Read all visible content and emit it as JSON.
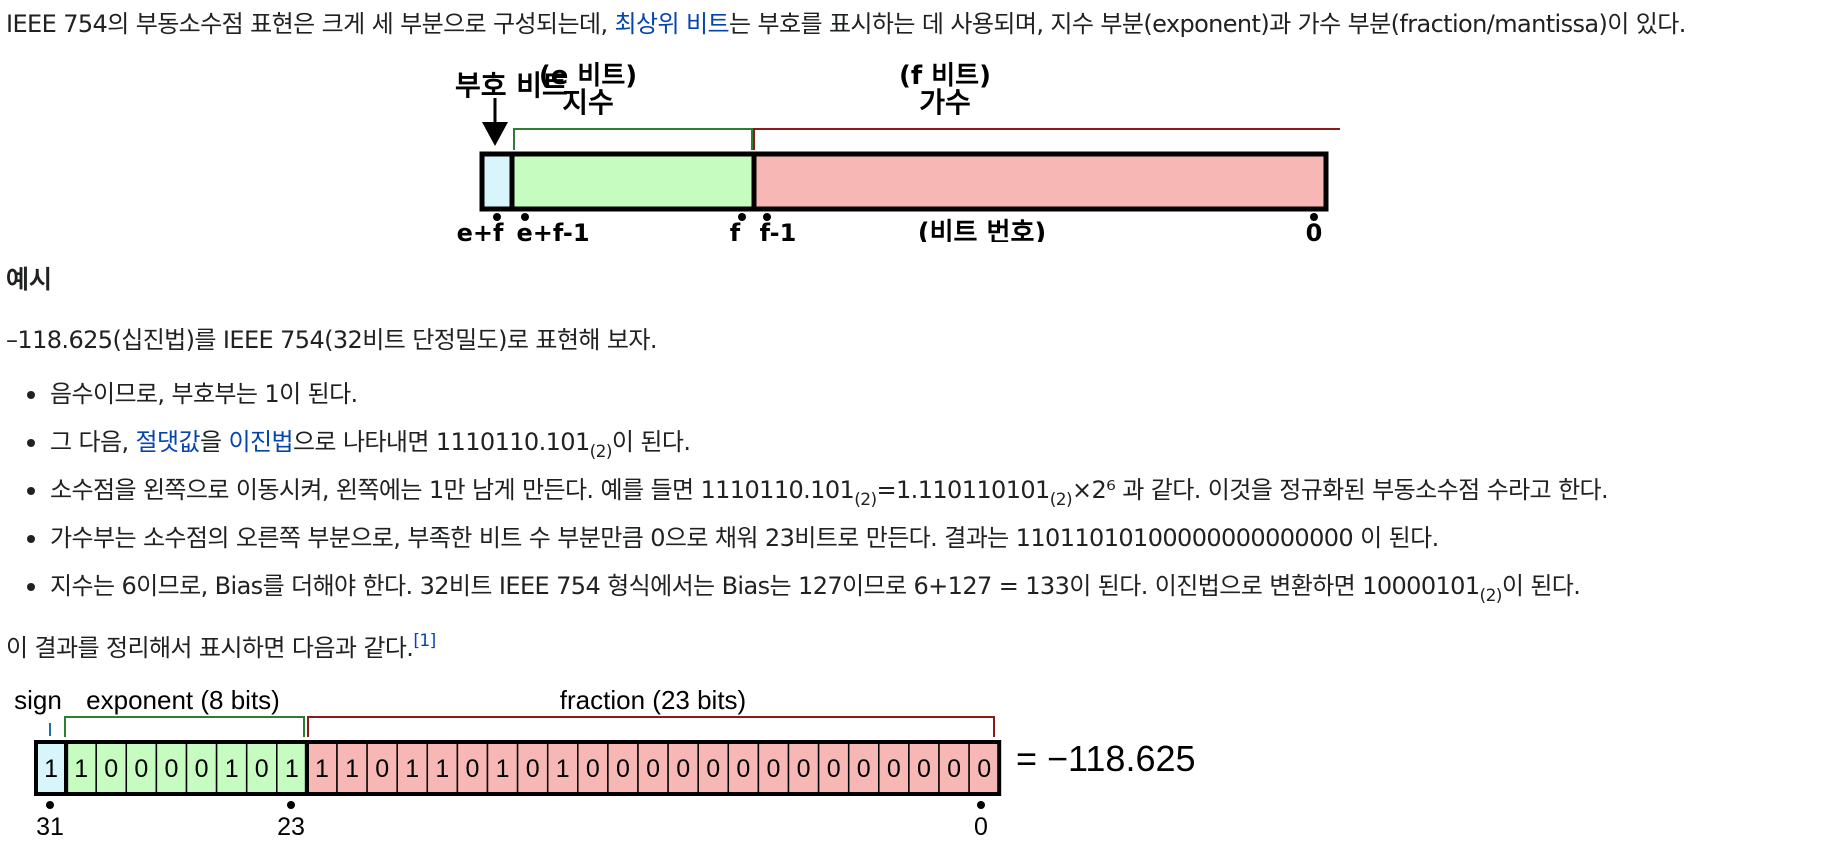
{
  "intro": {
    "part1": "IEEE 754의 부동소수점 표현은 크게 세 부분으로 구성되는데, ",
    "link": "최상위 비트",
    "part2": "는 부호를 표시하는 데 사용되며, 지수 부분(exponent)과 가수 부분(fraction/mantissa)이 있다."
  },
  "diagram1": {
    "sign_label": "부호 비트",
    "exp_label_top": "(e 비트)",
    "exp_label": "지수",
    "frac_label_top": "(f 비트)",
    "frac_label": "가수",
    "bit_e_f": "e+f",
    "bit_e_f_1": "e+f-1",
    "bit_f": "f",
    "bit_f_1": "f-1",
    "bit_number_label": "(비트 번호)",
    "bit_0": "0"
  },
  "example_heading": "예시",
  "example_intro": "–118.625(십진법)를 IEEE 754(32비트 단정밀도)로 표현해 보자.",
  "bullets": {
    "b1": "음수이므로, 부호부는 1이 된다.",
    "b2_a": "그 다음, ",
    "b2_link1": "절댓값",
    "b2_b": "을 ",
    "b2_link2": "이진법",
    "b2_c": "으로 나타내면 1110110.101",
    "b2_sub": "(2)",
    "b2_d": "이 된다.",
    "b3_a": "소수점을 왼쪽으로 이동시켜, 왼쪽에는 1만 남게 만든다. 예를 들면 1110110.101",
    "b3_sub1": "(2)",
    "b3_b": "=1.110110101",
    "b3_sub2": "(2)",
    "b3_c": "×2⁶ 과 같다. 이것을 정규화된 부동소수점 수라고 한다.",
    "b4": "가수부는 소수점의 오른쪽 부분으로, 부족한 비트 수 부분만큼 0으로 채워 23비트로 만든다. 결과는 11011010100000000000000 이 된다.",
    "b5_a": "지수는 6이므로, Bias를 더해야 한다. 32비트 IEEE 754 형식에서는 Bias는 127이므로 6+127 = 133이 된다. 이진법으로 변환하면 10000101",
    "b5_sub": "(2)",
    "b5_b": "이 된다."
  },
  "summary": {
    "text": "이 결과를 정리해서 표시하면 다음과 같다.",
    "ref": "[1]"
  },
  "diagram2": {
    "sign_label": "sign",
    "exponent_label": "exponent (8 bits)",
    "fraction_label": "fraction (23 bits)",
    "bits": [
      1,
      1,
      0,
      0,
      0,
      0,
      1,
      0,
      1,
      1,
      1,
      0,
      1,
      1,
      0,
      1,
      0,
      1,
      0,
      0,
      0,
      0,
      0,
      0,
      0,
      0,
      0,
      0,
      0,
      0,
      0,
      0
    ],
    "result": "= −118.625",
    "bit_31": "31",
    "bit_23": "23",
    "bit_0": "0"
  },
  "colors": {
    "sign": "#d7f5fb",
    "exponent": "#c6fcc0",
    "fraction": "#f7b8b5",
    "exp_bracket": "#2e7d32",
    "frac_bracket": "#8b1a1a",
    "link": "#0645ad"
  }
}
